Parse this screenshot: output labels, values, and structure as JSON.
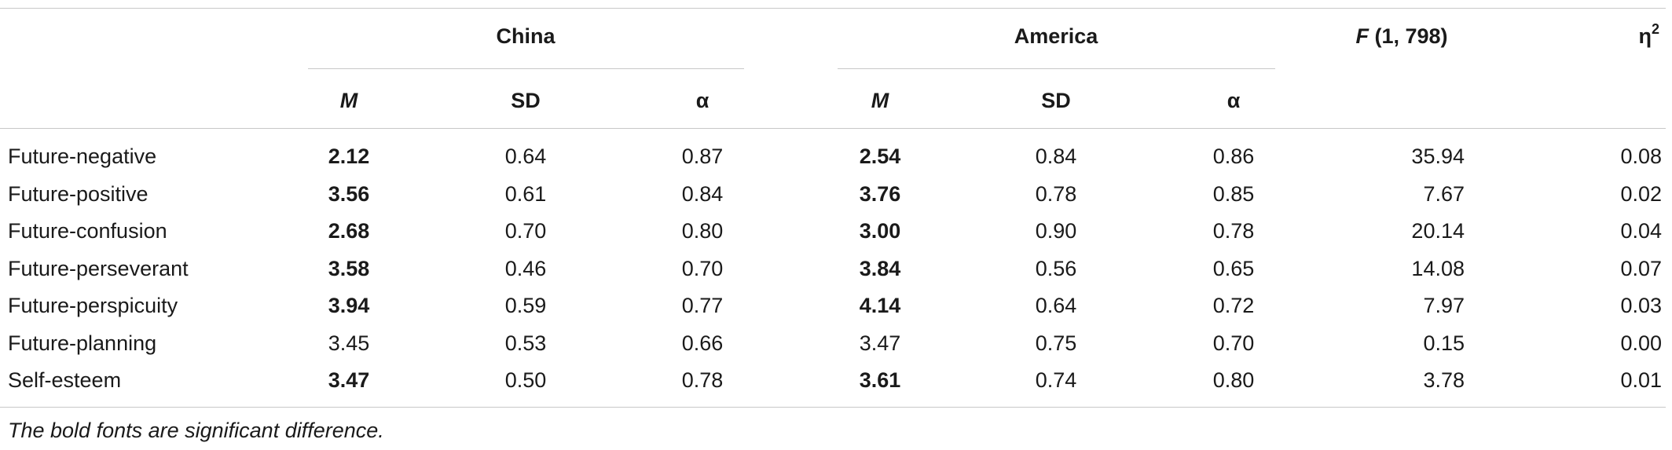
{
  "table": {
    "group_headers": {
      "china": "China",
      "america": "America",
      "f_stat": "F",
      "f_df": " (1, 798)",
      "eta": "η",
      "eta_sup": "2"
    },
    "sub_headers": {
      "china_m": "M",
      "china_sd": "SD",
      "china_alpha": "α",
      "america_m": "M",
      "america_sd": "SD",
      "america_alpha": "α"
    },
    "rows": [
      {
        "label": "Future-negative",
        "china_m": "2.12",
        "china_sd": "0.64",
        "china_alpha": "0.87",
        "america_m": "2.54",
        "america_sd": "0.84",
        "america_alpha": "0.86",
        "f": "35.94",
        "eta": "0.08",
        "significant": true
      },
      {
        "label": "Future-positive",
        "china_m": "3.56",
        "china_sd": "0.61",
        "china_alpha": "0.84",
        "america_m": "3.76",
        "america_sd": "0.78",
        "america_alpha": "0.85",
        "f": "7.67",
        "eta": "0.02",
        "significant": true
      },
      {
        "label": "Future-confusion",
        "china_m": "2.68",
        "china_sd": "0.70",
        "china_alpha": "0.80",
        "america_m": "3.00",
        "america_sd": "0.90",
        "america_alpha": "0.78",
        "f": "20.14",
        "eta": "0.04",
        "significant": true
      },
      {
        "label": "Future-perseverant",
        "china_m": "3.58",
        "china_sd": "0.46",
        "china_alpha": "0.70",
        "america_m": "3.84",
        "america_sd": "0.56",
        "america_alpha": "0.65",
        "f": "14.08",
        "eta": "0.07",
        "significant": true
      },
      {
        "label": "Future-perspicuity",
        "china_m": "3.94",
        "china_sd": "0.59",
        "china_alpha": "0.77",
        "america_m": "4.14",
        "america_sd": "0.64",
        "america_alpha": "0.72",
        "f": "7.97",
        "eta": "0.03",
        "significant": true
      },
      {
        "label": "Future-planning",
        "china_m": "3.45",
        "china_sd": "0.53",
        "china_alpha": "0.66",
        "america_m": "3.47",
        "america_sd": "0.75",
        "america_alpha": "0.70",
        "f": "0.15",
        "eta": "0.00",
        "significant": false
      },
      {
        "label": "Self-esteem",
        "china_m": "3.47",
        "china_sd": "0.50",
        "china_alpha": "0.78",
        "america_m": "3.61",
        "america_sd": "0.74",
        "america_alpha": "0.80",
        "f": "3.78",
        "eta": "0.01",
        "significant": true
      }
    ],
    "note": "The bold fonts are significant difference."
  }
}
